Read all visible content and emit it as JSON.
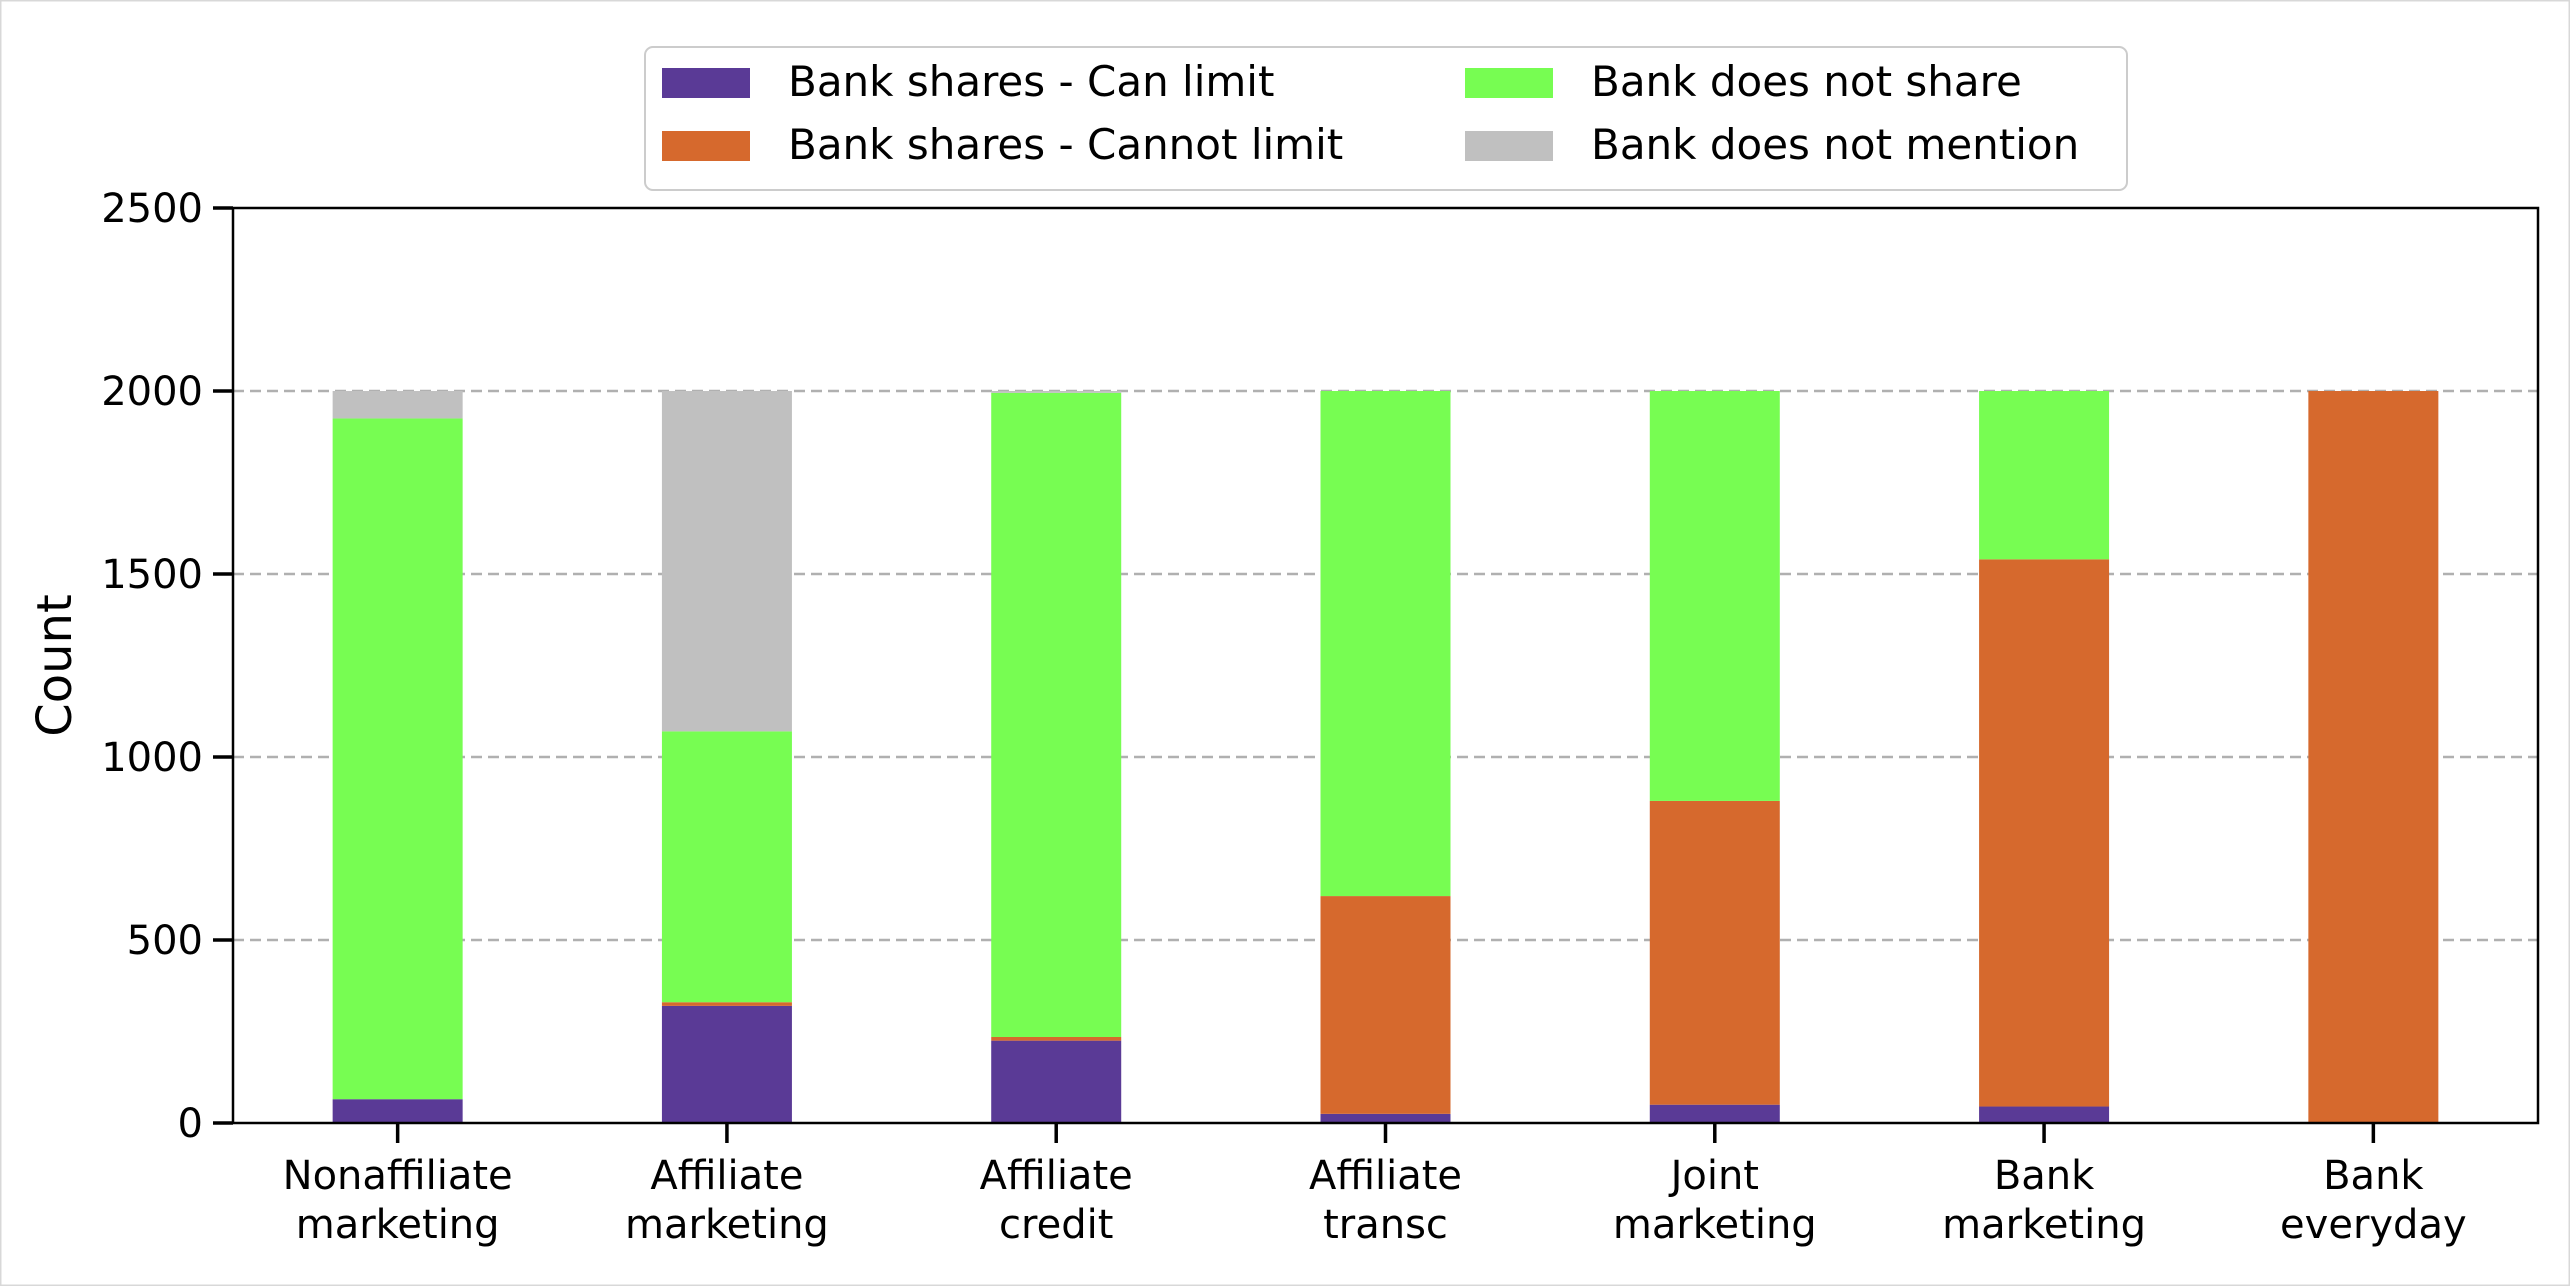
{
  "chart_data": {
    "type": "bar",
    "stacked": true,
    "ylabel": "Count",
    "xlabel": "",
    "ylim": [
      0,
      2500
    ],
    "yticks": [
      0,
      500,
      1000,
      1500,
      2000,
      2500
    ],
    "grid": "horizontal dashed",
    "legend_position": "top-center",
    "categories": [
      [
        "Nonaffiliate",
        "marketing"
      ],
      [
        "Affiliate",
        "marketing"
      ],
      [
        "Affiliate",
        "credit"
      ],
      [
        "Affiliate",
        "transc"
      ],
      [
        "Joint",
        "marketing"
      ],
      [
        "Bank",
        "marketing"
      ],
      [
        "Bank",
        "everyday"
      ]
    ],
    "series": [
      {
        "name": "Bank shares - Can limit",
        "color": "#5a3a96",
        "values": [
          65,
          320,
          225,
          25,
          50,
          45,
          0
        ]
      },
      {
        "name": "Bank shares - Cannot limit",
        "color": "#d6692d",
        "values": [
          0,
          10,
          10,
          595,
          830,
          1495,
          2000
        ]
      },
      {
        "name": "Bank does not share",
        "color": "#77fd52",
        "values": [
          1860,
          740,
          1760,
          1380,
          1120,
          460,
          0
        ]
      },
      {
        "name": "Bank does not mention",
        "color": "#c0c0c0",
        "values": [
          75,
          930,
          5,
          0,
          0,
          0,
          0
        ]
      }
    ]
  }
}
